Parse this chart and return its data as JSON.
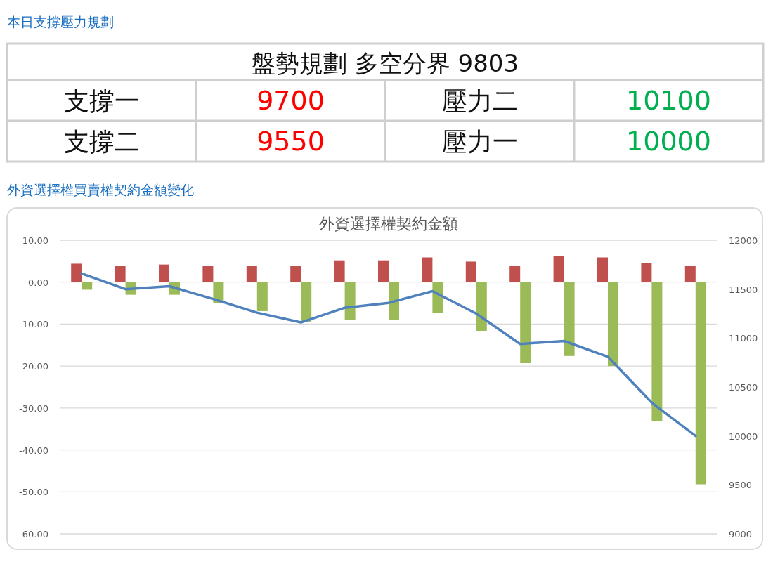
{
  "chart_data": [
    {
      "type": "other",
      "title": "本日支撐壓力規劃",
      "subtitle": "盤勢規劃 多空分界 9803",
      "categories": [
        "支撐一",
        "壓力二",
        "支撐二",
        "壓力一"
      ],
      "values": [
        9700,
        10100,
        9550,
        10000
      ],
      "data_labels": true,
      "colors": [
        "#ff0000",
        "#00b050",
        "#ff0000",
        "#00b050"
      ]
    },
    {
      "type": "bar",
      "subtitle": "外資選擇權買賣權契約金額變化",
      "title": "外資選擇權契約金額",
      "categories": [
        null,
        null,
        null,
        null,
        null,
        null,
        null,
        null,
        null,
        null,
        null,
        null,
        null,
        null,
        null
      ],
      "series": [
        {
          "type": "bar",
          "color": "#c0504d",
          "values": [
            4.4,
            3.9,
            4.2,
            3.9,
            3.9,
            3.9,
            5.2,
            5.2,
            5.9,
            4.9,
            3.9,
            6.2,
            5.9,
            4.6,
            3.9
          ]
        },
        {
          "type": "bar",
          "color": "#9bbb59",
          "values": [
            -1.8,
            -3.0,
            -3.0,
            -5.0,
            -6.9,
            -9.4,
            -9.0,
            -9.0,
            -7.4,
            -11.6,
            -19.3,
            -17.6,
            -20.0,
            -33.1,
            -48.2
          ]
        },
        {
          "type": "line",
          "axis": "y2",
          "color": "#4f81bd",
          "values": [
            11660,
            11500,
            11530,
            11400,
            11260,
            11160,
            11310,
            11360,
            11480,
            11250,
            10940,
            10970,
            10810,
            10340,
            10000
          ]
        }
      ],
      "ylim": [
        -60,
        10
      ],
      "yticks": [
        {
          "value": 10,
          "label": "10.00"
        },
        {
          "value": 0,
          "label": "0.00"
        },
        {
          "value": -10,
          "label": "-10.00"
        },
        {
          "value": -20,
          "label": "-20.00"
        },
        {
          "value": -30,
          "label": "-30.00"
        },
        {
          "value": -40,
          "label": "-40.00"
        },
        {
          "value": -50,
          "label": "-50.00"
        },
        {
          "value": -60,
          "label": "-60.00"
        }
      ],
      "y2lim": [
        9000,
        12000
      ],
      "y2ticks": [
        12000,
        11500,
        11000,
        10500,
        10000,
        9500,
        9000
      ],
      "grid": "y"
    }
  ]
}
